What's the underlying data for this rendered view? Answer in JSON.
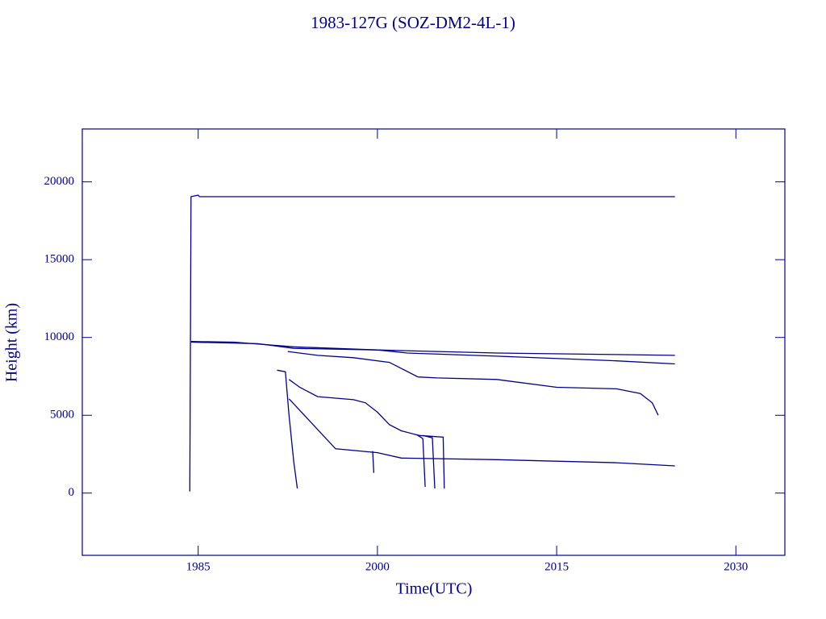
{
  "chart_data": {
    "type": "line",
    "title": "1983-127G (SOZ-DM2-4L-1)",
    "x_label": "Time(UTC)",
    "y_label": "Height (km)",
    "xlim": [
      1975.3,
      2034.1
    ],
    "ylim": [
      -4000,
      23400
    ],
    "xticks": [
      1985,
      2000,
      2015,
      2030
    ],
    "yticks": [
      0,
      5000,
      10000,
      15000,
      20000
    ],
    "series": [
      {
        "color": "#00008b",
        "x": [
          1984.3,
          1984.4,
          1985.0,
          1985.1,
          2024.9
        ],
        "values": [
          100,
          19050,
          19150,
          19050,
          19050
        ]
      },
      {
        "color": "#00008b",
        "x": [
          1984.4,
          1988,
          1993,
          2000,
          2010,
          2020,
          2024.9
        ],
        "values": [
          9740,
          9700,
          9400,
          9200,
          9000,
          8900,
          8850
        ]
      },
      {
        "color": "#00008b",
        "x": [
          1984.4,
          1990,
          1993,
          2000,
          2002.5,
          2010,
          2020,
          2024.9
        ],
        "values": [
          9700,
          9600,
          9300,
          9200,
          9000,
          8800,
          8500,
          8300
        ]
      },
      {
        "color": "#00008b",
        "x": [
          1992.5,
          1995,
          1998,
          2001,
          2003.4,
          2005,
          2010,
          2015,
          2020,
          2022,
          2023,
          2023.5
        ],
        "values": [
          9100,
          8850,
          8700,
          8400,
          7460,
          7400,
          7300,
          6800,
          6700,
          6400,
          5800,
          5000
        ]
      },
      {
        "color": "#00008b",
        "x": [
          1991.6,
          1992.3,
          1992.6,
          1993.0,
          1993.3
        ],
        "values": [
          7900,
          7800,
          5000,
          2000,
          300
        ]
      },
      {
        "color": "#00008b",
        "x": [
          1992.6,
          1993.5,
          1995,
          1998,
          1999,
          2000,
          2001,
          2002,
          2003.5,
          2004.5,
          2005.5,
          2005.6
        ],
        "values": [
          7300,
          6800,
          6200,
          6000,
          5800,
          5200,
          4400,
          4000,
          3700,
          3650,
          3600,
          300
        ]
      },
      {
        "color": "#00008b",
        "x": [
          2003.3,
          2003.8,
          2004.0
        ],
        "values": [
          3750,
          3500,
          400
        ]
      },
      {
        "color": "#00008b",
        "x": [
          2003.8,
          2004.6,
          2004.8
        ],
        "values": [
          3700,
          3550,
          300
        ]
      },
      {
        "color": "#00008b",
        "x": [
          1992.6,
          1996.5,
          2000,
          2002,
          2010,
          2020,
          2024.9
        ],
        "values": [
          6060,
          2850,
          2600,
          2250,
          2150,
          1950,
          1750
        ]
      },
      {
        "color": "#00008b",
        "x": [
          1999.6,
          1999.7
        ],
        "values": [
          2700,
          1300
        ]
      }
    ]
  }
}
